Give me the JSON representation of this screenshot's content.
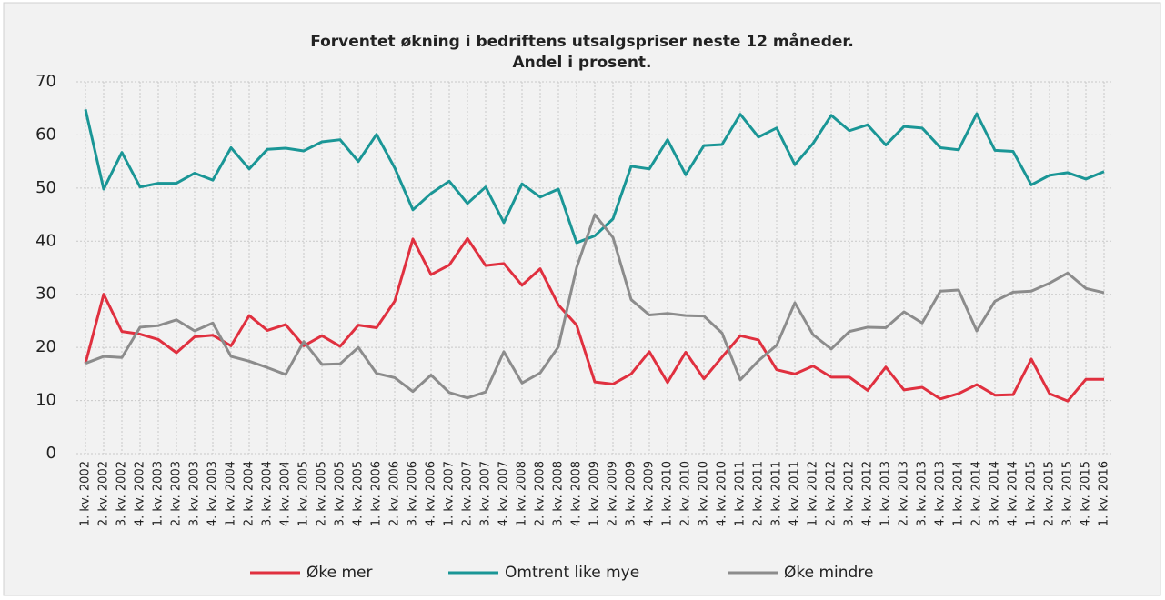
{
  "chart_data": {
    "type": "line",
    "title": [
      "Forventet økning i bedriftens utsalgspriser neste 12 måneder.",
      "Andel i prosent."
    ],
    "categories": [
      "1. kv. 2002",
      "2. kv. 2002",
      "3. kv. 2002",
      "4. kv. 2002",
      "1. kv. 2003",
      "2. kv. 2003",
      "3. kv. 2003",
      "4. kv. 2003",
      "1. kv. 2004",
      "2. kv. 2004",
      "3. kv. 2004",
      "4. kv. 2004",
      "1. kv. 2005",
      "2. kv. 2005",
      "3. kv. 2005",
      "4. kv. 2005",
      "1. kv. 2006",
      "2. kv. 2006",
      "3. kv. 2006",
      "4. kv. 2006",
      "1. kv. 2007",
      "2. kv. 2007",
      "3. kv. 2007",
      "4. kv. 2007",
      "1. kv. 2008",
      "2. kv. 2008",
      "3. kv. 2008",
      "4. kv. 2008",
      "1. kv. 2009",
      "2. kv. 2009",
      "3. kv. 2009",
      "4. kv. 2009",
      "1. kv. 2010",
      "2. kv. 2010",
      "3. kv. 2010",
      "4. kv. 2010",
      "1. kv. 2011",
      "2. kv. 2011",
      "3. kv. 2011",
      "4. kv. 2011",
      "1. kv. 2012",
      "2. kv. 2012",
      "3. kv. 2012",
      "4. kv. 2012",
      "1. kv. 2013",
      "2. kv. 2013",
      "3. kv. 2013",
      "4. kv. 2013",
      "1. kv. 2014",
      "2. kv. 2014",
      "3. kv. 2014",
      "4. kv. 2014",
      "1. kv. 2015",
      "2. kv. 2015",
      "3. kv. 2015",
      "4. kv. 2015",
      "1. kv. 2016"
    ],
    "series": [
      {
        "name": "Øke mer",
        "color": "#e0303f",
        "values": [
          17,
          30,
          23,
          22.5,
          21.5,
          19,
          22,
          22.3,
          20.3,
          26,
          23.2,
          24.3,
          20.3,
          22.2,
          20.2,
          24.2,
          23.7,
          28.7,
          40.4,
          33.7,
          35.5,
          40.5,
          35.4,
          35.8,
          31.7,
          34.8,
          28,
          24.2,
          13.5,
          13.1,
          15,
          19.2,
          13.4,
          19.1,
          14.1,
          18.2,
          22.2,
          21.4,
          15.8,
          15,
          16.5,
          14.4,
          14.4,
          11.9,
          16.3,
          12,
          12.5,
          10.3,
          11.3,
          13,
          11,
          11.1,
          17.8,
          11.3,
          9.9,
          14,
          14
        ]
      },
      {
        "name": "Omtrent like mye",
        "color": "#1a9696",
        "values": [
          64.8,
          49.8,
          56.7,
          50.2,
          50.9,
          50.9,
          52.8,
          51.5,
          57.6,
          53.6,
          57.3,
          57.5,
          57,
          58.7,
          59.1,
          55,
          60.1,
          53.8,
          45.9,
          49,
          51.3,
          47.1,
          50.2,
          43.5,
          50.8,
          48.3,
          49.8,
          39.7,
          41,
          44.2,
          54.1,
          53.6,
          59.1,
          52.5,
          58,
          58.2,
          63.9,
          59.6,
          61.3,
          54.4,
          58.4,
          63.7,
          60.8,
          61.9,
          58.1,
          61.6,
          61.3,
          57.6,
          57.2,
          64,
          57.1,
          56.9,
          50.6,
          52.4,
          52.9,
          51.7,
          53.1
        ]
      },
      {
        "name": "Øke mindre",
        "color": "#8c8c8c",
        "values": [
          17,
          18.3,
          18.1,
          23.8,
          24.1,
          25.2,
          23.1,
          24.6,
          18.3,
          17.4,
          16.2,
          14.9,
          21.1,
          16.8,
          16.9,
          20,
          15.1,
          14.3,
          11.7,
          14.8,
          11.5,
          10.5,
          11.6,
          19.2,
          13.3,
          15.2,
          20.1,
          35,
          45,
          40.7,
          29,
          26.1,
          26.4,
          26,
          25.9,
          22.7,
          13.9,
          17.5,
          20.4,
          28.4,
          22.4,
          19.7,
          23,
          23.8,
          23.7,
          26.7,
          24.6,
          30.6,
          30.8,
          23.1,
          28.7,
          30.4,
          30.6,
          32.1,
          34,
          31.1,
          30.3
        ]
      }
    ],
    "ylim": [
      0,
      70
    ],
    "yticks": [
      0,
      10,
      20,
      30,
      40,
      50,
      60,
      70
    ],
    "grid": true,
    "legend": "bottom"
  }
}
